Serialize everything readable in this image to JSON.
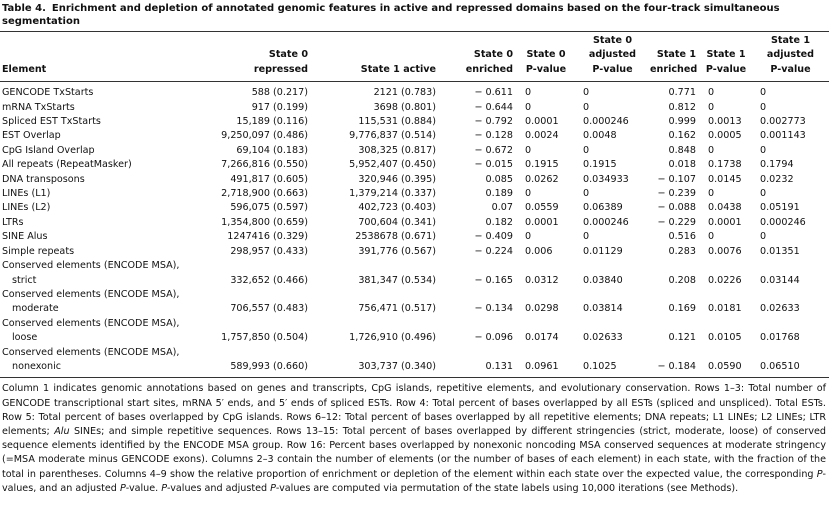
{
  "caption": {
    "label": "Table 4.",
    "title": "Enrichment and depletion of annotated genomic features in active and repressed domains based on the four-track simultaneous segmentation"
  },
  "table": {
    "header": [
      [
        "Element"
      ],
      [
        "State 0",
        "repressed"
      ],
      [
        "State 1 active"
      ],
      [
        "State 0",
        "enriched"
      ],
      [
        "State 0",
        "P-value"
      ],
      [
        "State 0",
        "adjusted",
        "P-value"
      ],
      [
        "State 1",
        "enriched"
      ],
      [
        "State 1",
        "P-value"
      ],
      [
        "State 1",
        "adjusted",
        "P-value"
      ]
    ],
    "rows": [
      [
        [
          "GENCODE TxStarts"
        ],
        "588 (0.217)",
        "2121 (0.783)",
        "− 0.611",
        "0",
        "0",
        "0.771",
        "0",
        "0"
      ],
      [
        [
          "mRNA TxStarts"
        ],
        "917 (0.199)",
        "3698 (0.801)",
        "− 0.644",
        "0",
        "0",
        "0.812",
        "0",
        "0"
      ],
      [
        [
          "Spliced EST TxStarts"
        ],
        "15,189 (0.116)",
        "115,531 (0.884)",
        "− 0.792",
        "0.0001",
        "0.000246",
        "0.999",
        "0.0013",
        "0.002773"
      ],
      [
        [
          "EST Overlap"
        ],
        "9,250,097 (0.486)",
        "9,776,837 (0.514)",
        "− 0.128",
        "0.0024",
        "0.0048",
        "0.162",
        "0.0005",
        "0.001143"
      ],
      [
        [
          "CpG Island Overlap"
        ],
        "69,104 (0.183)",
        "308,325 (0.817)",
        "− 0.672",
        "0",
        "0",
        "0.848",
        "0",
        "0"
      ],
      [
        [
          "All repeats (RepeatMasker)"
        ],
        "7,266,816 (0.550)",
        "5,952,407 (0.450)",
        "− 0.015",
        "0.1915",
        "0.1915",
        "0.018",
        "0.1738",
        "0.1794"
      ],
      [
        [
          "DNA transposons"
        ],
        "491,817 (0.605)",
        "320,946 (0.395)",
        "0.085",
        "0.0262",
        "0.034933",
        "− 0.107",
        "0.0145",
        "0.0232"
      ],
      [
        [
          "LINEs (L1)"
        ],
        "2,718,900 (0.663)",
        "1,379,214 (0.337)",
        "0.189",
        "0",
        "0",
        "− 0.239",
        "0",
        "0"
      ],
      [
        [
          "LINEs (L2)"
        ],
        "596,075 (0.597)",
        "402,723 (0.403)",
        "0.07",
        "0.0559",
        "0.06389",
        "− 0.088",
        "0.0438",
        "0.05191"
      ],
      [
        [
          "LTRs"
        ],
        "1,354,800 (0.659)",
        "700,604 (0.341)",
        "0.182",
        "0.0001",
        "0.000246",
        "− 0.229",
        "0.0001",
        "0.000246"
      ],
      [
        [
          "SINE Alus"
        ],
        "1247416 (0.329)",
        "2538678 (0.671)",
        "− 0.409",
        "0",
        "0",
        "0.516",
        "0",
        "0"
      ],
      [
        [
          "Simple repeats"
        ],
        "298,957 (0.433)",
        "391,776 (0.567)",
        "− 0.224",
        "0.006",
        "0.01129",
        "0.283",
        "0.0076",
        "0.01351"
      ],
      [
        [
          "Conserved elements (ENCODE MSA),",
          "strict"
        ],
        "332,652 (0.466)",
        "381,347 (0.534)",
        "− 0.165",
        "0.0312",
        "0.03840",
        "0.208",
        "0.0226",
        "0.03144"
      ],
      [
        [
          "Conserved elements (ENCODE MSA),",
          "moderate"
        ],
        "706,557 (0.483)",
        "756,471 (0.517)",
        "− 0.134",
        "0.0298",
        "0.03814",
        "0.169",
        "0.0181",
        "0.02633"
      ],
      [
        [
          "Conserved elements (ENCODE MSA),",
          "loose"
        ],
        "1,757,850 (0.504)",
        "1,726,910 (0.496)",
        "− 0.096",
        "0.0174",
        "0.02633",
        "0.121",
        "0.0105",
        "0.01768"
      ],
      [
        [
          "Conserved elements (ENCODE MSA),",
          "nonexonic"
        ],
        "589,993 (0.660)",
        "303,737 (0.340)",
        "0.131",
        "0.0961",
        "0.1025",
        "− 0.184",
        "0.0590",
        "0.06510"
      ]
    ]
  },
  "footnote": [
    "Column 1 indicates genomic annotations based on genes and transcripts, CpG islands, repetitive elements, and evolutionary conservation. Rows 1–3: Total number of GENCODE transcriptional start sites, mRNA 5′ ends, and 5′ ends of spliced ESTs. Row 4: Total percent of bases overlapped by all ESTs (spliced and unspliced). Total ESTs. Row 5: Total percent of bases overlapped by CpG islands. Rows 6–12: Total percent of bases overlapped by all repetitive elements; DNA repeats; L1 LINEs; L2 LINEs; LTR elements; ",
    "Alu",
    " SINEs; and simple repetitive sequences. Rows 13–15: Total percent of bases overlapped by different stringencies (strict, moderate, loose) of conserved sequence elements identified by the ENCODE MSA group. Row 16: Percent bases overlapped by nonexonic noncoding MSA conserved sequences at moderate stringency (=MSA moderate minus GENCODE exons). Columns 2–3 contain the number of elements (or the number of bases of each element) in each state, with the fraction of the total in parentheses. Columns 4–9 show the relative proportion of enrichment or depletion of the element within each state over the expected value, the corresponding ",
    "P",
    "-values, and an adjusted ",
    "P",
    "-value. ",
    "P",
    "-values and adjusted ",
    "P",
    "-values are computed via permutation of the state labels using 10,000 iterations (see Methods)."
  ]
}
